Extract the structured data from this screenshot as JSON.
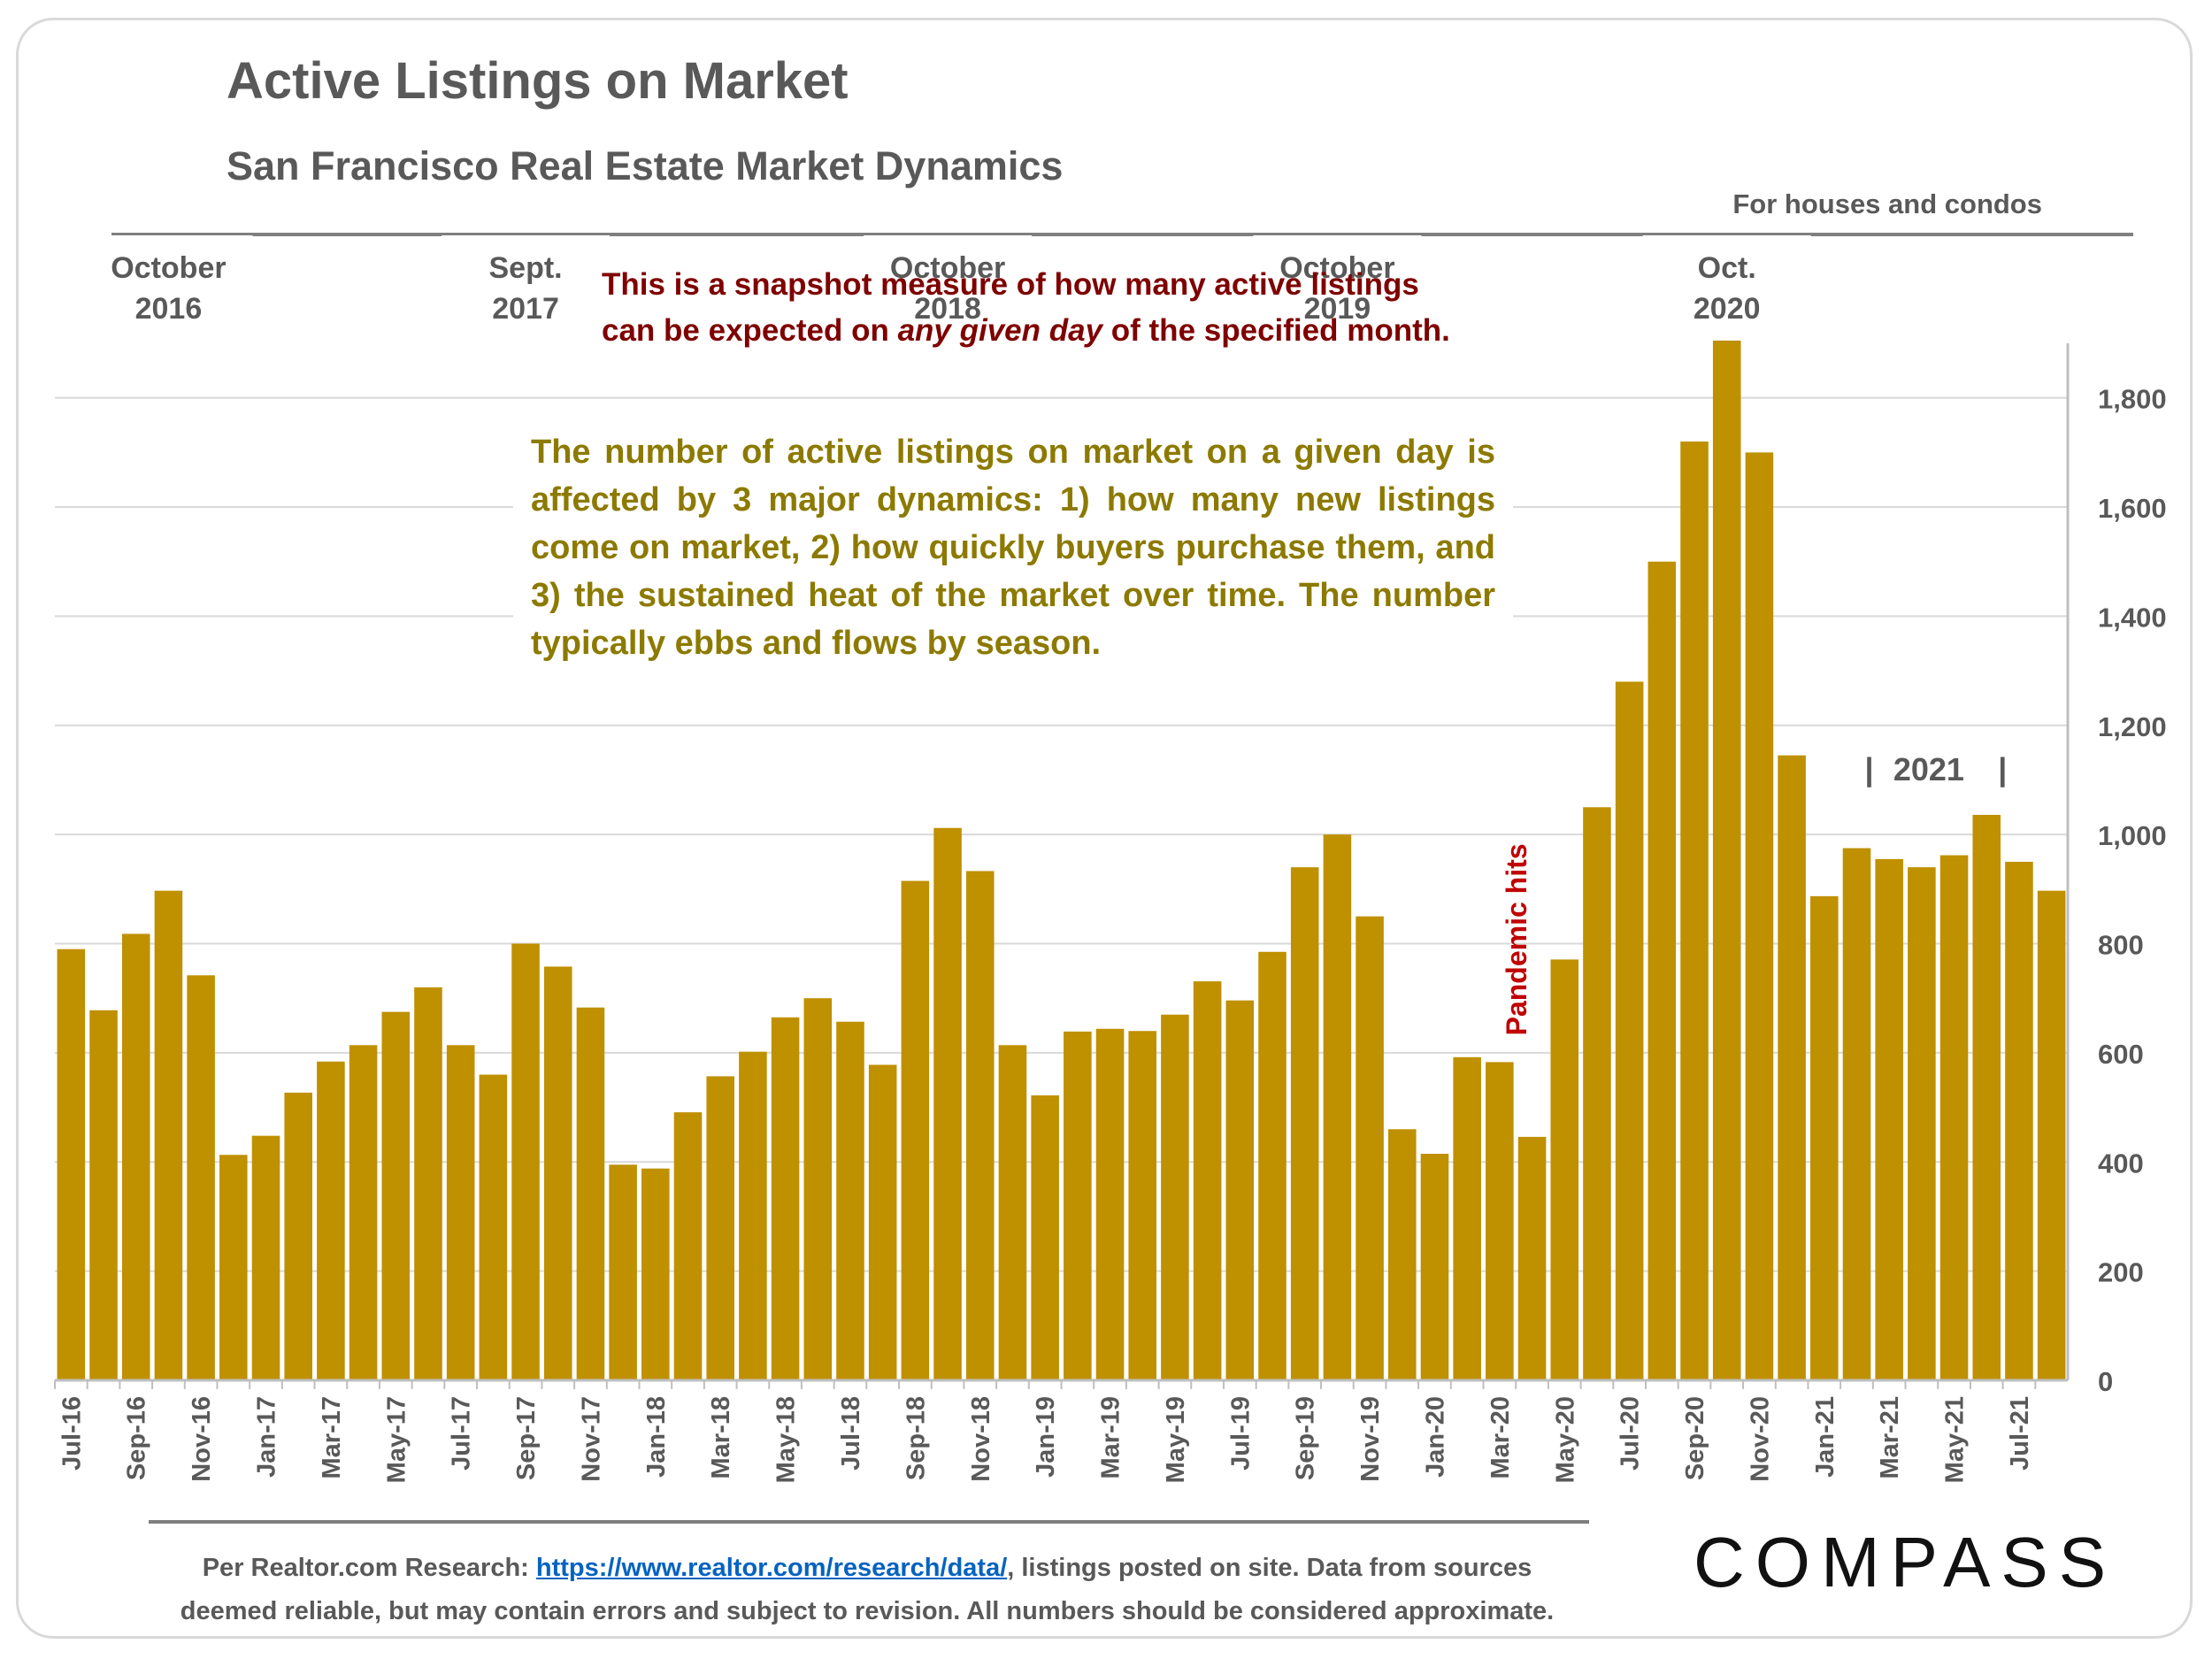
{
  "header": {
    "title": "Active Listings on Market",
    "subtitle": "San Francisco Real Estate Market Dynamics",
    "scope_note": "For houses and condos"
  },
  "annotations": {
    "snapshot_line1": "This is a snapshot measure of how many active listings",
    "snapshot_line2_pre": "can be expected on ",
    "snapshot_line2_em": "any given day",
    "snapshot_line2_post": " of the specified month.",
    "dynamics": "The number of active listings on market on a given day is affected by 3 major dynamics: 1) how many new listings come on market, 2) how quickly buyers purchase them, and 3) the sustained heat of the market over time. The number typically ebbs and flows by season."
  },
  "footer": {
    "source_pre": "Per Realtor.com Research:  ",
    "source_link": "https://www.realtor.com/research/data/",
    "source_post": ", listings posted on site. Data from sources",
    "line2": "deemed reliable, but may contain errors and subject to revision. All numbers should be considered approximate."
  },
  "brand": {
    "logo_text": "COMPASS"
  },
  "colors": {
    "bar": "#bf9000",
    "grid": "#d9d9d9",
    "axis_text": "#595959",
    "pandemic": "#c00000"
  },
  "chart_data": {
    "type": "bar",
    "title": "Active Listings on Market",
    "subtitle": "San Francisco Real Estate Market Dynamics",
    "ylim": [
      0,
      1900
    ],
    "yticks": [
      0,
      200,
      400,
      600,
      800,
      1000,
      1200,
      1400,
      1600,
      1800
    ],
    "ytick_labels": [
      "0",
      "200",
      "400",
      "600",
      "800",
      "1,000",
      "1,200",
      "1,400",
      "1,600",
      "1,800"
    ],
    "y_axis_side": "right",
    "grid": true,
    "categories": [
      "Jul-16",
      "Aug-16",
      "Sep-16",
      "Oct-16",
      "Nov-16",
      "Dec-16",
      "Jan-17",
      "Feb-17",
      "Mar-17",
      "Apr-17",
      "May-17",
      "Jun-17",
      "Jul-17",
      "Aug-17",
      "Sep-17",
      "Oct-17",
      "Nov-17",
      "Dec-17",
      "Jan-18",
      "Feb-18",
      "Mar-18",
      "Apr-18",
      "May-18",
      "Jun-18",
      "Jul-18",
      "Aug-18",
      "Sep-18",
      "Oct-18",
      "Nov-18",
      "Dec-18",
      "Jan-19",
      "Feb-19",
      "Mar-19",
      "Apr-19",
      "May-19",
      "Jun-19",
      "Jul-19",
      "Aug-19",
      "Sep-19",
      "Oct-19",
      "Nov-19",
      "Dec-19",
      "Jan-20",
      "Feb-20",
      "Mar-20",
      "Apr-20",
      "May-20",
      "Jun-20",
      "Jul-20",
      "Aug-20",
      "Sep-20",
      "Oct-20",
      "Nov-20",
      "Dec-20",
      "Jan-21",
      "Feb-21",
      "Mar-21",
      "Apr-21",
      "May-21",
      "Jun-21",
      "Jul-21",
      "Aug-21"
    ],
    "x_tick_labels": [
      "Jul-16",
      "",
      "Sep-16",
      "",
      "Nov-16",
      "",
      "Jan-17",
      "",
      "Mar-17",
      "",
      "May-17",
      "",
      "Jul-17",
      "",
      "Sep-17",
      "",
      "Nov-17",
      "",
      "Jan-18",
      "",
      "Mar-18",
      "",
      "May-18",
      "",
      "Jul-18",
      "",
      "Sep-18",
      "",
      "Nov-18",
      "",
      "Jan-19",
      "",
      "Mar-19",
      "",
      "May-19",
      "",
      "Jul-19",
      "",
      "Sep-19",
      "",
      "Nov-19",
      "",
      "Jan-20",
      "",
      "Mar-20",
      "",
      "May-20",
      "",
      "Jul-20",
      "",
      "Sep-20",
      "",
      "Nov-20",
      "",
      "Jan-21",
      "",
      "Mar-21",
      "",
      "May-21",
      "",
      "Jul-21",
      ""
    ],
    "values": [
      790,
      678,
      818,
      897,
      742,
      413,
      448,
      527,
      584,
      614,
      675,
      720,
      614,
      560,
      800,
      758,
      683,
      395,
      388,
      491,
      557,
      602,
      665,
      700,
      657,
      578,
      915,
      1012,
      933,
      614,
      522,
      639,
      644,
      640,
      670,
      731,
      696,
      785,
      940,
      1000,
      850,
      460,
      415,
      592,
      583,
      446,
      771,
      1050,
      1280,
      1500,
      1720,
      1905,
      1700,
      1145,
      887,
      975,
      955,
      940,
      962,
      1036,
      950,
      897
    ],
    "callouts": [
      {
        "index": 3,
        "lines": [
          "October",
          "2016"
        ]
      },
      {
        "index": 14,
        "lines": [
          "Sept.",
          "2017"
        ]
      },
      {
        "index": 27,
        "lines": [
          "October",
          "2018"
        ]
      },
      {
        "index": 39,
        "lines": [
          "October",
          "2019"
        ]
      },
      {
        "index": 51,
        "lines": [
          "Oct.",
          "2020"
        ]
      }
    ],
    "pandemic_label": "Pandemic hits",
    "year_bracket": {
      "bar": "|",
      "label": "2021"
    }
  }
}
